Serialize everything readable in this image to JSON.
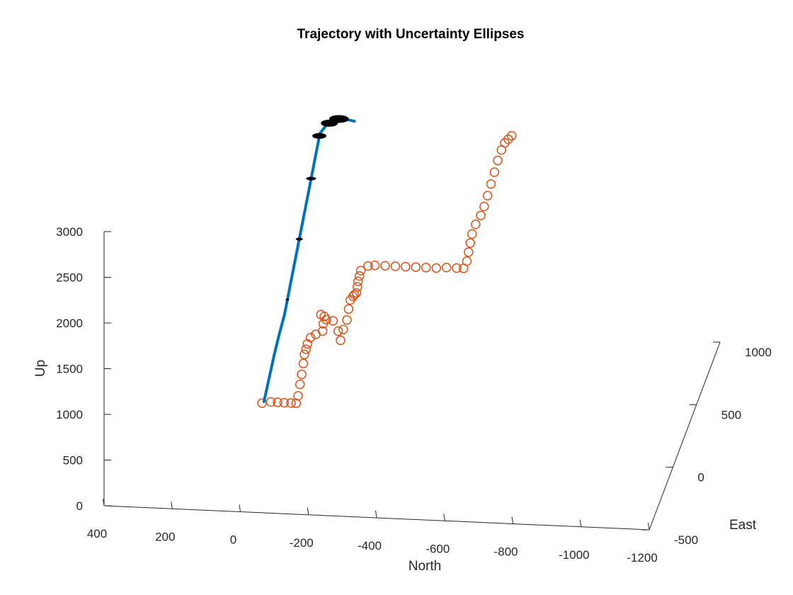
{
  "chart_data": {
    "type": "scatter",
    "title": "Trajectory with Uncertainty Ellipses",
    "xlabel": "North",
    "ylabel": "East",
    "zlabel": "Up",
    "xlim": [
      -1200,
      400
    ],
    "ylim": [
      -500,
      1000
    ],
    "zlim": [
      0,
      3000
    ],
    "x_ticks": [
      "400",
      "200",
      "0",
      "-200",
      "-400",
      "-600",
      "-800",
      "-1000",
      "-1200"
    ],
    "y_ticks": [
      "-500",
      "0",
      "500",
      "1000"
    ],
    "z_ticks": [
      "0",
      "500",
      "1000",
      "1500",
      "2000",
      "2500",
      "3000"
    ],
    "grid": false,
    "legend": "none",
    "colors": {
      "trajectory": "#0072BD",
      "measurements": "#D95319",
      "ellipses": "#000000"
    },
    "series": [
      {
        "type": "line",
        "points": [
          [
            0,
            0,
            520
          ],
          [
            -14,
            10,
            770
          ],
          [
            -28,
            20,
            1020
          ],
          [
            -42,
            25,
            1240
          ],
          [
            -56,
            30,
            1440
          ],
          [
            -64,
            35,
            1600
          ],
          [
            -72,
            40,
            1760
          ],
          [
            -80,
            45,
            1920
          ],
          [
            -88,
            50,
            2080
          ],
          [
            -96,
            55,
            2240
          ],
          [
            -104,
            60,
            2400
          ],
          [
            -112,
            65,
            2560
          ],
          [
            -120,
            70,
            2720
          ],
          [
            -128,
            75,
            2880
          ],
          [
            -136,
            80,
            3040
          ],
          [
            -144,
            85,
            3200
          ],
          [
            -152,
            90,
            3360
          ],
          [
            -170,
            100,
            3440
          ],
          [
            -188,
            105,
            3480
          ],
          [
            -220,
            110,
            3500
          ],
          [
            -250,
            110,
            3480
          ]
        ]
      },
      {
        "type": "scatter",
        "marker": "o",
        "points": [
          [
            5,
            -5,
            510
          ],
          [
            -20,
            0,
            520
          ],
          [
            -40,
            0,
            520
          ],
          [
            -60,
            -5,
            525
          ],
          [
            -80,
            -5,
            525
          ],
          [
            -95,
            -5,
            525
          ],
          [
            -100,
            0,
            600
          ],
          [
            -105,
            5,
            720
          ],
          [
            -110,
            5,
            830
          ],
          [
            -115,
            5,
            950
          ],
          [
            -118,
            5,
            1050
          ],
          [
            -122,
            10,
            1100
          ],
          [
            -126,
            10,
            1160
          ],
          [
            -135,
            10,
            1230
          ],
          [
            -150,
            15,
            1260
          ],
          [
            -170,
            15,
            1300
          ],
          [
            -172,
            15,
            1380
          ],
          [
            -175,
            15,
            1460
          ],
          [
            -165,
            15,
            1480
          ],
          [
            -180,
            20,
            1420
          ],
          [
            -200,
            20,
            1410
          ],
          [
            -215,
            20,
            1300
          ],
          [
            -222,
            20,
            1200
          ],
          [
            -230,
            20,
            1320
          ],
          [
            -240,
            25,
            1420
          ],
          [
            -245,
            25,
            1540
          ],
          [
            -250,
            25,
            1640
          ],
          [
            -258,
            25,
            1680
          ],
          [
            -262,
            25,
            1700
          ],
          [
            -268,
            25,
            1720
          ],
          [
            -270,
            30,
            1780
          ],
          [
            -272,
            30,
            1840
          ],
          [
            -276,
            30,
            1900
          ],
          [
            -280,
            30,
            1960
          ],
          [
            -300,
            40,
            2000
          ],
          [
            -320,
            40,
            2010
          ],
          [
            -350,
            40,
            2010
          ],
          [
            -380,
            40,
            2010
          ],
          [
            -410,
            40,
            2010
          ],
          [
            -440,
            40,
            2010
          ],
          [
            -470,
            40,
            2010
          ],
          [
            -500,
            40,
            2010
          ],
          [
            -530,
            40,
            2020
          ],
          [
            -560,
            40,
            2020
          ],
          [
            -580,
            40,
            2020
          ],
          [
            -590,
            40,
            2100
          ],
          [
            -595,
            40,
            2200
          ],
          [
            -600,
            40,
            2300
          ],
          [
            -605,
            40,
            2400
          ],
          [
            -615,
            45,
            2500
          ],
          [
            -630,
            45,
            2600
          ],
          [
            -640,
            45,
            2700
          ],
          [
            -650,
            45,
            2820
          ],
          [
            -660,
            45,
            2950
          ],
          [
            -670,
            45,
            3080
          ],
          [
            -680,
            45,
            3210
          ],
          [
            -690,
            50,
            3320
          ],
          [
            -700,
            50,
            3400
          ],
          [
            -710,
            50,
            3440
          ],
          [
            -720,
            50,
            3480
          ]
        ]
      }
    ],
    "ellipses": [
      {
        "center": [
          -64,
          35,
          1600
        ],
        "rx": 2.5,
        "ry": 1.5
      },
      {
        "center": [
          -96,
          55,
          2240
        ],
        "rx": 5,
        "ry": 2
      },
      {
        "center": [
          -128,
          75,
          2880
        ],
        "rx": 7,
        "ry": 2.5
      },
      {
        "center": [
          -150,
          90,
          3330
        ],
        "rx": 10,
        "ry": 4
      },
      {
        "center": [
          -178,
          100,
          3460
        ],
        "rx": 12,
        "ry": 5
      },
      {
        "center": [
          -205,
          108,
          3500
        ],
        "rx": 14,
        "ry": 5.5
      }
    ]
  }
}
